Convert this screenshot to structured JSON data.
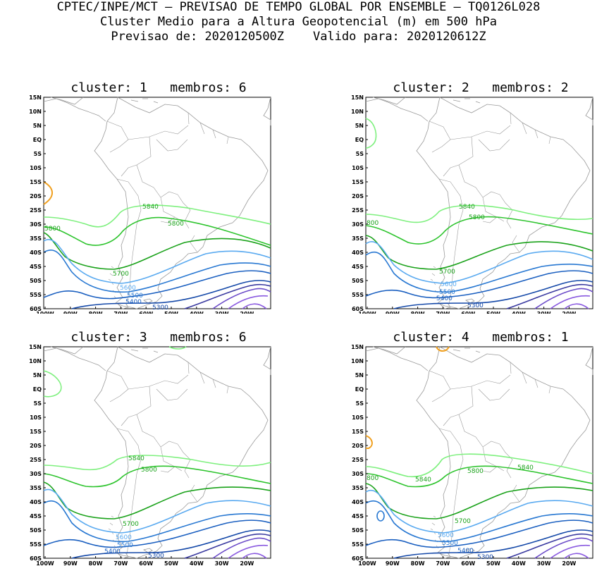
{
  "header": {
    "line1": "CPTEC/INPE/MCT – PREVISAO DE TEMPO GLOBAL POR ENSEMBLE – TQ0126L028",
    "line2": "Cluster Medio para a Altura Geopotencial (m) em 500 hPa",
    "line3": "Previsao de: 2020120500Z    Valido para: 2020120612Z"
  },
  "axes": {
    "lat_labels": [
      "15N",
      "10N",
      "5N",
      "EQ",
      "5S",
      "10S",
      "15S",
      "20S",
      "25S",
      "30S",
      "35S",
      "40S",
      "45S",
      "50S",
      "55S",
      "60S"
    ],
    "lon_labels": [
      "100W",
      "90W",
      "80W",
      "70W",
      "60W",
      "50W",
      "40W",
      "30W",
      "20W"
    ]
  },
  "colors": {
    "c5840": "#7ef07e",
    "c5800": "#2ec42e",
    "c5700": "#1aa21a",
    "c5600": "#5aaaf0",
    "c5500": "#2878d2",
    "c5400": "#1a5fc0",
    "c5300": "#1448a8",
    "c5200": "#3a3aa0",
    "c5100": "#6a4ac8",
    "c5100b": "#8a5ae0",
    "orange": "#f0a020",
    "map": "#9a9a9a"
  },
  "panels": [
    {
      "title": "cluster: 1   membros: 6",
      "labels": {
        "l5840": "5840",
        "l5800": "5800",
        "l5800w": "5800",
        "l5700": "5700",
        "l5600": "5600",
        "l5500": "5500",
        "l5400": "5400",
        "l5300": "5300"
      }
    },
    {
      "title": "cluster: 2   membros: 2",
      "labels": {
        "l5840": "5840",
        "l5800": "5800",
        "l5800w": "800",
        "l5700": "5700",
        "l5600": "5600",
        "l5500": "5500",
        "l5400": "5400",
        "l5300": "5300"
      }
    },
    {
      "title": "cluster: 3   membros: 6",
      "labels": {
        "l5840": "5840",
        "l5800": "5800",
        "l5700": "5700",
        "l5600": "5600",
        "l5500": "5500",
        "l5400": "5400",
        "l5300": "5300"
      }
    },
    {
      "title": "cluster: 4   membros: 1",
      "labels": {
        "l5840": "5840",
        "l5840b": "5840",
        "l5800": "5800",
        "l5800w": "800",
        "l5700": "5700",
        "l5600": "5600",
        "l5500": "5500",
        "l5400": "5400",
        "l5300": "5300"
      }
    }
  ]
}
